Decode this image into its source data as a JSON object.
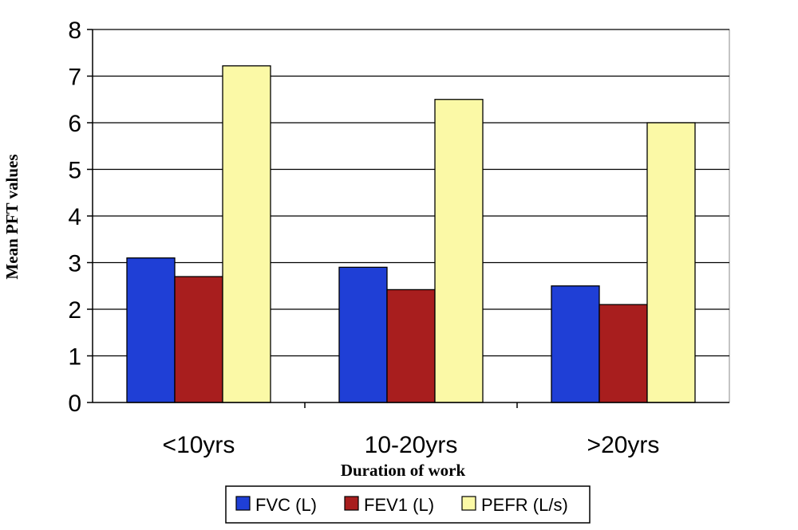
{
  "chart_data": {
    "type": "bar",
    "title": "",
    "xlabel": "Duration of work",
    "ylabel": "Mean PFT values",
    "categories": [
      "<10yrs",
      "10-20yrs",
      ">20yrs"
    ],
    "series": [
      {
        "name": "FVC (L)",
        "values": [
          3.1,
          2.9,
          2.5
        ],
        "color": "#1f3fd6"
      },
      {
        "name": "FEV1 (L)",
        "values": [
          2.7,
          2.42,
          2.1
        ],
        "color": "#a81e1e"
      },
      {
        "name": "PEFR (L/s)",
        "values": [
          7.22,
          6.5,
          6.0
        ],
        "color": "#fbf9a6"
      }
    ],
    "ylim": [
      0,
      8
    ],
    "yticks": [
      "0",
      "1",
      "2",
      "3",
      "4",
      "5",
      "6",
      "7",
      "8"
    ],
    "grid": true,
    "legend": "bottom"
  }
}
